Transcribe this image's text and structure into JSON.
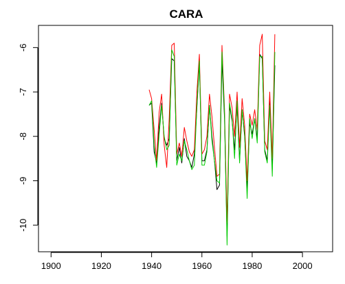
{
  "chart_data": {
    "type": "line",
    "title": "CARA",
    "xlabel": "",
    "ylabel": "",
    "xlim": [
      1895,
      2012
    ],
    "ylim": [
      -10.6,
      -5.5
    ],
    "x_ticks": [
      1900,
      1920,
      1940,
      1960,
      1980,
      2000
    ],
    "x_tick_labels": [
      "1900",
      "1920",
      "1940",
      "1960",
      "1980",
      "2000"
    ],
    "y_ticks": [
      -10,
      -9,
      -8,
      -7,
      -6
    ],
    "y_tick_labels": [
      "-10",
      "-9",
      "-8",
      "-7",
      "-6"
    ],
    "grid": false,
    "legend": "none",
    "x": [
      1939,
      1940,
      1941,
      1942,
      1943,
      1944,
      1945,
      1946,
      1947,
      1948,
      1949,
      1950,
      1951,
      1952,
      1953,
      1954,
      1955,
      1956,
      1957,
      1958,
      1959,
      1960,
      1961,
      1962,
      1963,
      1964,
      1965,
      1966,
      1967,
      1968,
      1969,
      1970,
      1971,
      1972,
      1973,
      1974,
      1975,
      1976,
      1977,
      1978,
      1979,
      1980,
      1981,
      1982,
      1983,
      1984,
      1985,
      1986,
      1987,
      1988,
      1989
    ],
    "series": [
      {
        "color": "#000000",
        "values": [
          -7.3,
          -7.25,
          -8.35,
          -8.6,
          -7.8,
          -7.25,
          -8.05,
          -8.2,
          -8.05,
          -6.25,
          -6.3,
          -8.55,
          -8.25,
          -8.6,
          -8.05,
          -8.45,
          -8.55,
          -8.7,
          -8.4,
          -7.35,
          -6.35,
          -8.55,
          -8.55,
          -8.3,
          -7.3,
          -8.0,
          -8.55,
          -9.2,
          -9.1,
          -6.3,
          -7.6,
          -10.25,
          -7.3,
          -7.65,
          -8.3,
          -7.3,
          -8.55,
          -7.4,
          -8.0,
          -9.2,
          -7.7,
          -7.95,
          -7.6,
          -8.05,
          -6.15,
          -6.25,
          -8.3,
          -8.55,
          -7.2,
          -8.75,
          -6.4
        ]
      },
      {
        "color": "#ff0000",
        "values": [
          -6.95,
          -7.15,
          -7.85,
          -8.55,
          -7.45,
          -7.05,
          -8.2,
          -8.7,
          -7.6,
          -5.95,
          -5.9,
          -8.4,
          -8.15,
          -8.45,
          -7.8,
          -8.1,
          -8.35,
          -8.45,
          -8.3,
          -7.0,
          -6.15,
          -8.4,
          -8.3,
          -8.0,
          -7.05,
          -7.55,
          -8.25,
          -8.9,
          -8.85,
          -5.95,
          -7.4,
          -9.95,
          -7.05,
          -7.35,
          -8.0,
          -7.0,
          -8.25,
          -7.15,
          -7.75,
          -9.0,
          -7.5,
          -7.75,
          -7.4,
          -7.85,
          -5.95,
          -5.7,
          -8.1,
          -8.3,
          -7.0,
          -8.5,
          -5.7
        ]
      },
      {
        "color": "#00cc00",
        "values": [
          -7.3,
          -7.2,
          -8.2,
          -8.7,
          -7.95,
          -7.3,
          -8.0,
          -8.3,
          -8.2,
          -6.05,
          -6.2,
          -8.65,
          -8.4,
          -8.55,
          -8.1,
          -8.3,
          -8.55,
          -8.75,
          -8.65,
          -7.3,
          -6.3,
          -8.65,
          -8.65,
          -8.35,
          -7.3,
          -8.1,
          -8.55,
          -9.0,
          -9.05,
          -6.1,
          -7.5,
          -10.45,
          -7.25,
          -7.6,
          -8.5,
          -7.2,
          -8.6,
          -7.4,
          -7.95,
          -9.4,
          -7.6,
          -8.05,
          -7.6,
          -8.15,
          -6.2,
          -6.2,
          -8.35,
          -8.6,
          -7.3,
          -8.9,
          -6.1
        ]
      }
    ]
  }
}
